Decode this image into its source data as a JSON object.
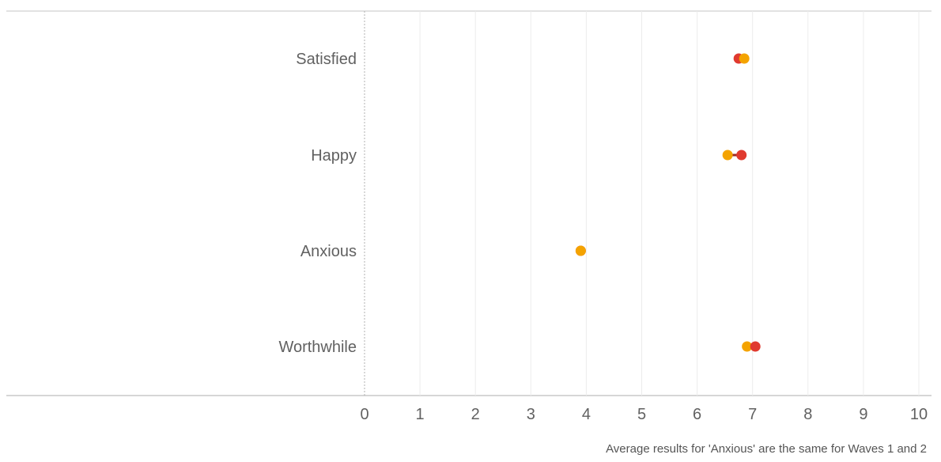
{
  "chart_data": {
    "type": "scatter",
    "subtype": "dumbbell",
    "orientation": "horizontal",
    "categories": [
      "Satisfied",
      "Happy",
      "Anxious",
      "Worthwhile"
    ],
    "series": [
      {
        "color": "#f4a300",
        "values": [
          6.85,
          6.55,
          3.9,
          6.9
        ]
      },
      {
        "color": "#e03a2f",
        "values": [
          6.75,
          6.8,
          3.9,
          7.05
        ]
      }
    ],
    "connector_color": "#9e2a22",
    "xlim": [
      0,
      10
    ],
    "xticks": [
      "0",
      "1",
      "2",
      "3",
      "4",
      "5",
      "6",
      "7",
      "8",
      "9",
      "10"
    ],
    "grid": true,
    "legend": "none",
    "footnote": "Average results for 'Anxious' are the same for Waves 1 and 2"
  }
}
